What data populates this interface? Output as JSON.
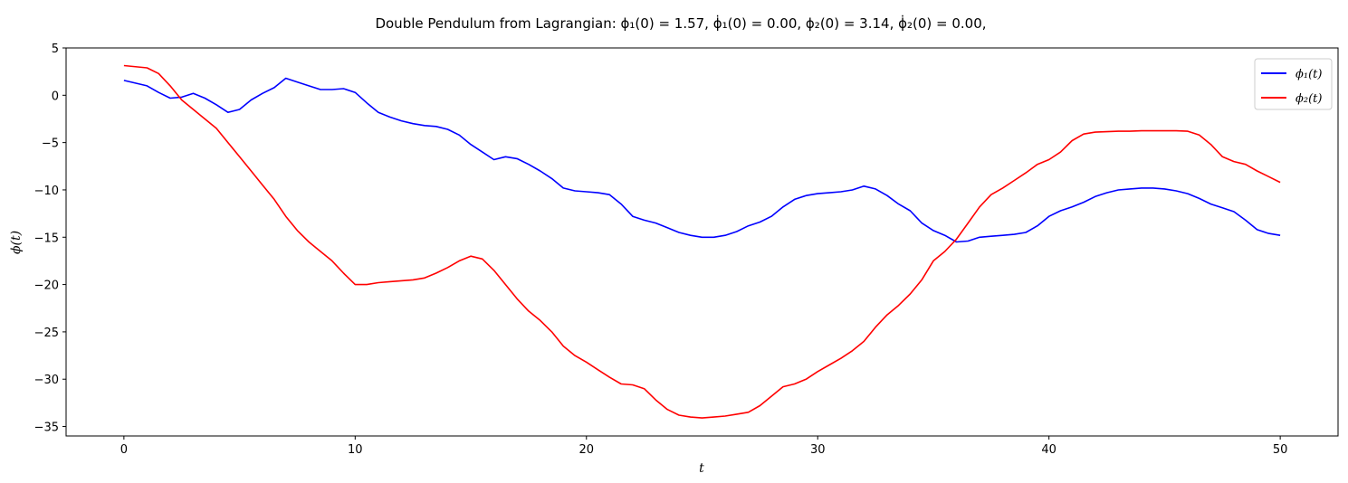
{
  "chart_data": {
    "type": "line",
    "title": "Double Pendulum from Lagrangian:   ϕ₁(0) = 1.57,  ϕ̇₁(0) = 0.00,   ϕ₂(0) = 3.14,  ϕ̇₂(0) = 0.00,",
    "xlabel": "t",
    "ylabel": "ϕ(t)",
    "xlim": [
      -2.5,
      52.5
    ],
    "ylim": [
      -36,
      5
    ],
    "x_ticks": [
      0,
      10,
      20,
      30,
      40,
      50
    ],
    "y_ticks": [
      5,
      0,
      -5,
      -10,
      -15,
      -20,
      -25,
      -30,
      -35
    ],
    "grid": false,
    "legend_position": "top-right",
    "x": [
      0,
      1,
      1.5,
      2,
      2.5,
      3,
      3.5,
      4,
      4.5,
      5,
      5.5,
      6,
      6.5,
      7,
      7.5,
      8,
      8.5,
      9,
      9.5,
      10,
      10.5,
      11,
      11.5,
      12,
      12.5,
      13,
      13.5,
      14,
      14.5,
      15,
      15.5,
      16,
      16.5,
      17,
      17.5,
      18,
      18.5,
      19,
      19.5,
      20,
      20.5,
      21,
      21.5,
      22,
      22.5,
      23,
      23.5,
      24,
      24.5,
      25,
      25.5,
      26,
      26.5,
      27,
      27.5,
      28,
      28.5,
      29,
      29.5,
      30,
      30.5,
      31,
      31.5,
      32,
      32.5,
      33,
      33.5,
      34,
      34.5,
      35,
      35.5,
      36,
      36.5,
      37,
      37.5,
      38,
      38.5,
      39,
      39.5,
      40,
      40.5,
      41,
      41.5,
      42,
      42.5,
      43,
      43.5,
      44,
      44.5,
      45,
      45.5,
      46,
      46.5,
      47,
      47.5,
      48,
      48.5,
      49,
      49.5,
      50
    ],
    "series": [
      {
        "name": "ϕ₁(t)",
        "color": "#0000ff",
        "values": [
          1.57,
          1.0,
          0.3,
          -0.3,
          -0.2,
          0.2,
          -0.3,
          -1.0,
          -1.8,
          -1.5,
          -0.5,
          0.2,
          0.8,
          1.8,
          1.4,
          1.0,
          0.6,
          0.6,
          0.7,
          0.3,
          -0.8,
          -1.8,
          -2.3,
          -2.7,
          -3.0,
          -3.2,
          -3.3,
          -3.6,
          -4.2,
          -5.2,
          -6.0,
          -6.8,
          -6.5,
          -6.7,
          -7.3,
          -8.0,
          -8.8,
          -9.8,
          -10.1,
          -10.2,
          -10.3,
          -10.5,
          -11.5,
          -12.8,
          -13.2,
          -13.5,
          -14.0,
          -14.5,
          -14.8,
          -15.0,
          -15.0,
          -14.8,
          -14.4,
          -13.8,
          -13.4,
          -12.8,
          -11.8,
          -11.0,
          -10.6,
          -10.4,
          -10.3,
          -10.2,
          -10.0,
          -9.6,
          -9.9,
          -10.6,
          -11.5,
          -12.2,
          -13.5,
          -14.3,
          -14.8,
          -15.5,
          -15.4,
          -15.0,
          -14.9,
          -14.8,
          -14.7,
          -14.5,
          -13.8,
          -12.8,
          -12.2,
          -11.8,
          -11.3,
          -10.7,
          -10.3,
          -10.0,
          -9.9,
          -9.8,
          -9.8,
          -9.9,
          -10.1,
          -10.4,
          -10.9,
          -11.5,
          -11.9,
          -12.3,
          -13.2,
          -14.2,
          -14.6,
          -14.8
        ]
      },
      {
        "name": "ϕ₂(t)",
        "color": "#ff0000",
        "values": [
          3.14,
          2.9,
          2.3,
          1.0,
          -0.5,
          -1.5,
          -2.5,
          -3.5,
          -5.0,
          -6.5,
          -8.0,
          -9.5,
          -11.0,
          -12.8,
          -14.3,
          -15.5,
          -16.5,
          -17.5,
          -18.8,
          -20.0,
          -20.0,
          -19.8,
          -19.7,
          -19.6,
          -19.5,
          -19.3,
          -18.8,
          -18.2,
          -17.5,
          -17.0,
          -17.3,
          -18.5,
          -20.0,
          -21.5,
          -22.8,
          -23.8,
          -25.0,
          -26.5,
          -27.5,
          -28.2,
          -29.0,
          -29.8,
          -30.5,
          -30.6,
          -31.0,
          -32.2,
          -33.2,
          -33.8,
          -34.0,
          -34.1,
          -34.0,
          -33.9,
          -33.7,
          -33.5,
          -32.8,
          -31.8,
          -30.8,
          -30.5,
          -30.0,
          -29.2,
          -28.5,
          -27.8,
          -27.0,
          -26.0,
          -24.5,
          -23.2,
          -22.2,
          -21.0,
          -19.5,
          -17.5,
          -16.5,
          -15.2,
          -13.5,
          -11.8,
          -10.5,
          -9.8,
          -9.0,
          -8.2,
          -7.3,
          -6.8,
          -6.0,
          -4.8,
          -4.1,
          -3.9,
          -3.85,
          -3.8,
          -3.8,
          -3.75,
          -3.75,
          -3.75,
          -3.75,
          -3.8,
          -4.2,
          -5.2,
          -6.5,
          -7.0,
          -7.3,
          -8.0,
          -8.6,
          -9.2
        ]
      }
    ]
  }
}
